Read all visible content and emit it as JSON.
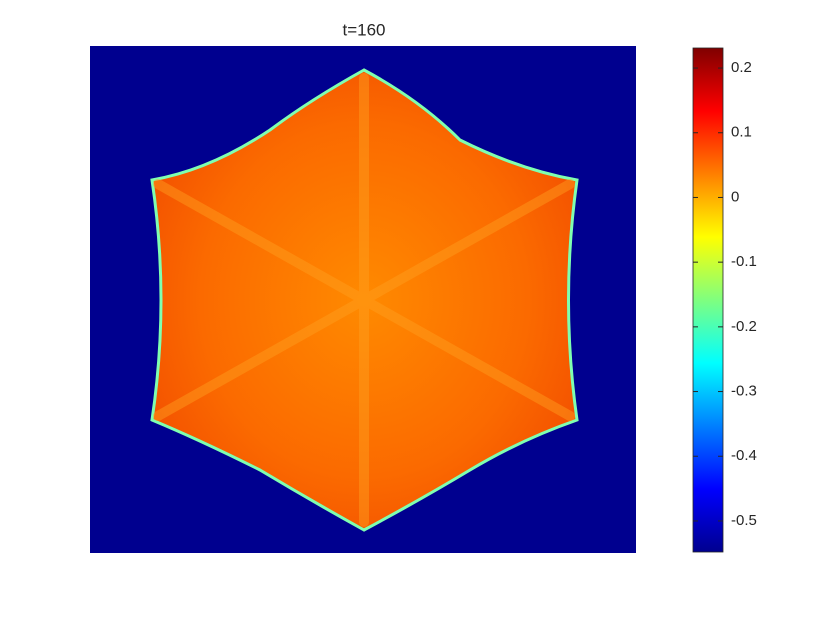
{
  "chart_data": {
    "type": "heatmap",
    "title": "t=160",
    "colormap": "jet",
    "clim": [
      -0.548,
      0.231
    ],
    "cticks": [
      -0.5,
      -0.4,
      -0.3,
      -0.2,
      -0.1,
      0,
      0.1,
      0.2
    ]
  }
}
